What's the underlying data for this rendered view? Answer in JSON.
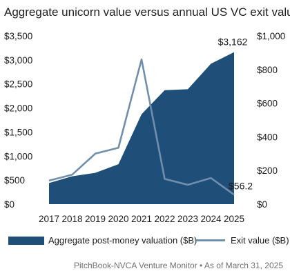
{
  "chart_data": {
    "type": "area",
    "title": "Aggregate unicorn value versus annual US VC exit value",
    "categories": [
      "2017",
      "2018",
      "2019",
      "2020",
      "2021",
      "2022",
      "2023",
      "2024",
      "2025"
    ],
    "series": [
      {
        "name": "Aggregate post-money valuation ($B)",
        "type": "area",
        "axis": "left",
        "color": "#1f4e79",
        "values": [
          440,
          580,
          650,
          830,
          1870,
          2370,
          2390,
          2920,
          3162
        ]
      },
      {
        "name": "Exit value ($B)",
        "type": "line",
        "axis": "right",
        "color": "#6f8fad",
        "values": [
          140,
          175,
          300,
          335,
          860,
          150,
          115,
          155,
          56.2
        ]
      }
    ],
    "y_left": {
      "ylim": [
        0,
        3500
      ],
      "ticks": [
        "$0",
        "$500",
        "$1,000",
        "$1,500",
        "$2,000",
        "$2,500",
        "$3,000",
        "$3,500"
      ]
    },
    "y_right": {
      "ylim": [
        0,
        1000
      ],
      "ticks": [
        "$0",
        "$200",
        "$400",
        "$600",
        "$800",
        "$1,000"
      ]
    },
    "data_labels": {
      "area_last": "$3,162",
      "line_last": "$56.2"
    },
    "grid": false,
    "legend_position": "bottom"
  },
  "source": "PitchBook-NVCA Venture Monitor  •  As of March 31, 2025"
}
